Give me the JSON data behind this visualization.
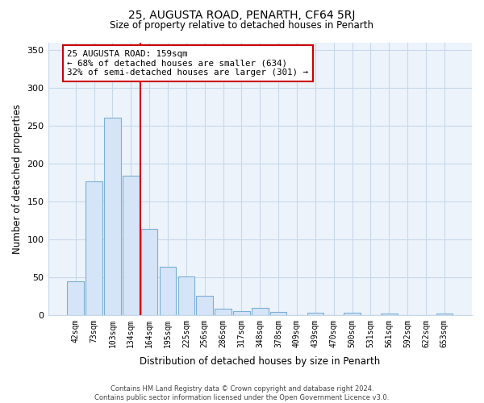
{
  "title": "25, AUGUSTA ROAD, PENARTH, CF64 5RJ",
  "subtitle": "Size of property relative to detached houses in Penarth",
  "xlabel": "Distribution of detached houses by size in Penarth",
  "ylabel": "Number of detached properties",
  "bar_labels": [
    "42sqm",
    "73sqm",
    "103sqm",
    "134sqm",
    "164sqm",
    "195sqm",
    "225sqm",
    "256sqm",
    "286sqm",
    "317sqm",
    "348sqm",
    "378sqm",
    "409sqm",
    "439sqm",
    "470sqm",
    "500sqm",
    "531sqm",
    "561sqm",
    "592sqm",
    "622sqm",
    "653sqm"
  ],
  "bar_values": [
    44,
    176,
    260,
    184,
    114,
    64,
    51,
    25,
    8,
    5,
    9,
    4,
    0,
    3,
    0,
    3,
    0,
    2,
    0,
    0,
    2
  ],
  "bar_color": "#d6e4f7",
  "bar_edge_color": "#7bafd4",
  "vline_color": "#cc0000",
  "annotation_text": "25 AUGUSTA ROAD: 159sqm\n← 68% of detached houses are smaller (634)\n32% of semi-detached houses are larger (301) →",
  "annotation_box_edge_color": "#cc0000",
  "ylim": [
    0,
    360
  ],
  "yticks": [
    0,
    50,
    100,
    150,
    200,
    250,
    300,
    350
  ],
  "footer_line1": "Contains HM Land Registry data © Crown copyright and database right 2024.",
  "footer_line2": "Contains public sector information licensed under the Open Government Licence v3.0.",
  "bg_color": "#edf3fb",
  "plot_bg_color": "#edf3fb",
  "grid_color": "#c8d8ea"
}
